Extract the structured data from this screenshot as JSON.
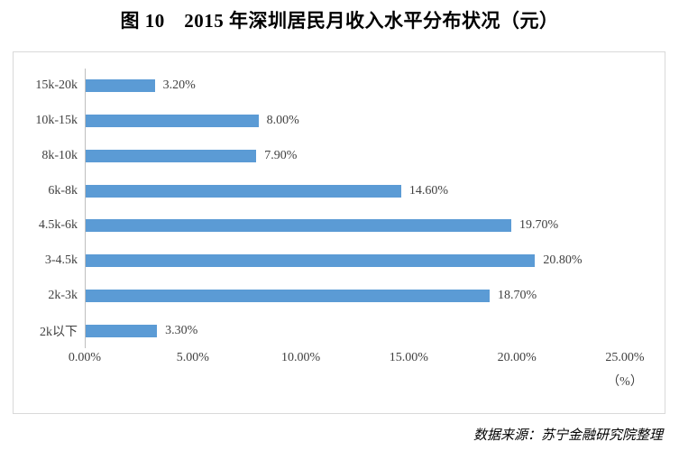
{
  "page_title": "图 10　2015 年深圳居民月收入水平分布状况（元）",
  "source_note": "数据来源：苏宁金融研究院整理",
  "colors": {
    "bar": "#5B9BD5",
    "chart_border": "#D9D9D9",
    "axis_line": "#BFBFBF",
    "label_text": "#404040",
    "title_text": "#000000"
  },
  "chart_data": {
    "type": "bar",
    "orientation": "horizontal",
    "title": "图 10　2015 年深圳居民月收入水平分布状况（元）",
    "categories": [
      "15k-20k",
      "10k-15k",
      "8k-10k",
      "6k-8k",
      "4.5k-6k",
      "3-4.5k",
      "2k-3k",
      "2k以下"
    ],
    "values": [
      3.2,
      8.0,
      7.9,
      14.6,
      19.7,
      20.8,
      18.7,
      3.3
    ],
    "value_labels": [
      "3.20%",
      "8.00%",
      "7.90%",
      "14.60%",
      "19.70%",
      "20.80%",
      "18.70%",
      "3.30%"
    ],
    "x_tick_labels": [
      "0.00%",
      "5.00%",
      "10.00%",
      "15.00%",
      "20.00%",
      "25.00%"
    ],
    "x_tick_values": [
      0,
      5,
      10,
      15,
      20,
      25
    ],
    "x_unit_label": "（%）",
    "xlim": [
      0,
      25
    ],
    "grid": false,
    "legend": false,
    "data_labels": "outside-end",
    "source": "数据来源：苏宁金融研究院整理"
  }
}
